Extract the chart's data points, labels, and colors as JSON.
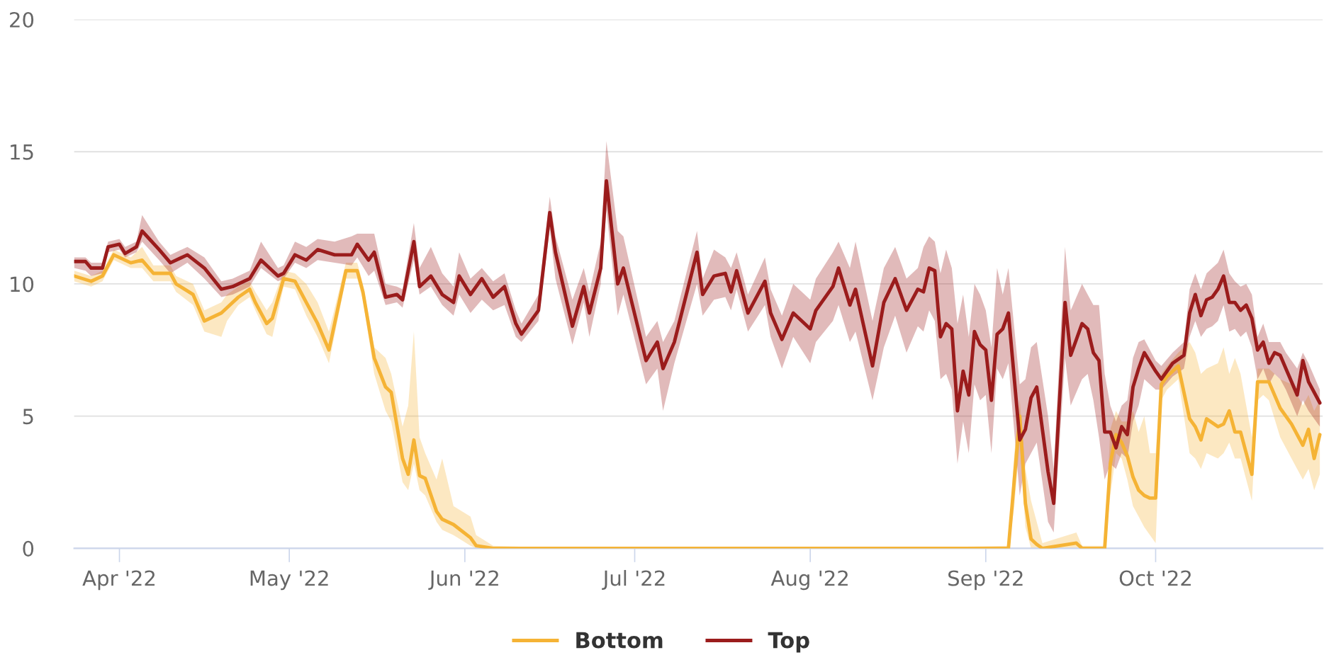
{
  "chart_data": {
    "type": "line",
    "xlim": [
      "2022-03-24",
      "2022-10-30T12:00"
    ],
    "xticks": [
      {
        "value": "2022-04-01",
        "label": "Apr '22"
      },
      {
        "value": "2022-05-01",
        "label": "May '22"
      },
      {
        "value": "2022-06-01",
        "label": "Jun '22"
      },
      {
        "value": "2022-07-01",
        "label": "Jul '22"
      },
      {
        "value": "2022-08-01",
        "label": "Aug '22"
      },
      {
        "value": "2022-09-01",
        "label": "Sep '22"
      },
      {
        "value": "2022-10-01",
        "label": "Oct '22"
      }
    ],
    "ylim": [
      0,
      20
    ],
    "yticks": [
      0,
      5,
      10,
      15,
      20
    ],
    "grid": "y",
    "legend": "bottom",
    "line_style": "solid",
    "series": [
      {
        "name": "Bottom",
        "color": "#f5b335",
        "x": [
          "2022-03-24",
          "2022-03-27",
          "2022-03-29",
          "2022-03-31",
          "2022-04-03",
          "2022-04-05",
          "2022-04-07",
          "2022-04-10",
          "2022-04-11",
          "2022-04-14",
          "2022-04-16",
          "2022-04-19",
          "2022-04-20",
          "2022-04-22",
          "2022-04-24",
          "2022-04-25",
          "2022-04-27",
          "2022-04-28",
          "2022-04-30",
          "2022-05-02",
          "2022-05-04",
          "2022-05-06",
          "2022-05-08",
          "2022-05-11",
          "2022-05-13",
          "2022-05-14",
          "2022-05-16",
          "2022-05-18",
          "2022-05-19",
          "2022-05-21",
          "2022-05-22",
          "2022-05-23",
          "2022-05-24",
          "2022-05-25",
          "2022-05-27",
          "2022-05-28",
          "2022-05-30",
          "2022-06-02",
          "2022-06-03",
          "2022-06-06",
          "2022-06-20",
          "2022-07-15",
          "2022-08-15",
          "2022-09-05",
          "2022-09-06",
          "2022-09-07",
          "2022-09-08",
          "2022-09-09",
          "2022-09-10",
          "2022-09-11",
          "2022-09-17",
          "2022-09-18",
          "2022-09-22",
          "2022-09-23",
          "2022-09-24",
          "2022-09-25",
          "2022-09-26",
          "2022-09-27",
          "2022-09-28",
          "2022-09-29",
          "2022-09-30",
          "2022-10-01",
          "2022-10-02",
          "2022-10-03",
          "2022-10-05",
          "2022-10-07",
          "2022-10-08",
          "2022-10-09",
          "2022-10-10",
          "2022-10-12",
          "2022-10-13",
          "2022-10-14",
          "2022-10-15",
          "2022-10-16",
          "2022-10-18",
          "2022-10-19",
          "2022-10-20",
          "2022-10-21",
          "2022-10-23",
          "2022-10-25",
          "2022-10-27",
          "2022-10-28",
          "2022-10-29",
          "2022-10-30"
        ],
        "values": [
          10.3,
          10.1,
          10.3,
          11.1,
          10.8,
          10.9,
          10.4,
          10.4,
          10.0,
          9.6,
          8.6,
          8.9,
          9.1,
          9.5,
          9.8,
          9.3,
          8.5,
          8.7,
          10.2,
          10.1,
          9.3,
          8.5,
          7.5,
          10.5,
          10.5,
          9.7,
          7.2,
          6.1,
          5.9,
          3.4,
          2.8,
          4.1,
          2.75,
          2.65,
          1.4,
          1.1,
          0.9,
          0.4,
          0.1,
          0,
          0,
          0,
          0,
          0,
          2.5,
          5.0,
          1.7,
          0.35,
          0.15,
          0,
          0.2,
          0,
          0,
          3.2,
          4.3,
          4.0,
          3.5,
          2.7,
          2.2,
          2.0,
          1.9,
          1.9,
          6.2,
          6.5,
          6.9,
          4.9,
          4.6,
          4.1,
          4.9,
          4.6,
          4.7,
          5.2,
          4.4,
          4.4,
          2.8,
          6.3,
          6.3,
          6.3,
          5.3,
          4.7,
          3.9,
          4.5,
          3.4,
          4.3
        ],
        "lower": [
          10.1,
          9.9,
          10.1,
          10.9,
          10.6,
          10.6,
          10.1,
          10.1,
          9.7,
          9.2,
          8.2,
          8.0,
          8.6,
          9.2,
          9.5,
          9.0,
          8.1,
          8.0,
          9.9,
          9.8,
          8.8,
          8.0,
          7.0,
          10.2,
          10.2,
          9.4,
          6.6,
          5.2,
          4.8,
          2.5,
          2.2,
          3.2,
          2.2,
          2.0,
          1.0,
          0.7,
          0.5,
          0.1,
          0.0,
          0,
          0,
          0,
          0,
          0,
          1.5,
          4.0,
          0.8,
          0.0,
          0.0,
          0,
          0.0,
          0,
          0,
          2.0,
          3.6,
          3.4,
          2.6,
          1.6,
          1.2,
          0.8,
          0.5,
          0.2,
          5.6,
          6.0,
          6.4,
          3.6,
          3.4,
          3.0,
          3.6,
          3.4,
          3.6,
          4.0,
          3.4,
          3.4,
          1.8,
          5.6,
          5.8,
          5.6,
          4.2,
          3.4,
          2.6,
          3.0,
          2.2,
          2.8
        ],
        "upper": [
          10.5,
          10.3,
          10.5,
          11.3,
          11.0,
          11.4,
          10.7,
          10.7,
          10.3,
          10.0,
          9.0,
          9.3,
          9.6,
          9.9,
          10.1,
          9.7,
          9.0,
          9.3,
          10.5,
          10.4,
          10.0,
          9.3,
          8.2,
          10.8,
          10.8,
          10.0,
          7.6,
          7.2,
          6.6,
          4.6,
          5.4,
          8.2,
          4.2,
          3.6,
          2.6,
          3.4,
          1.6,
          1.2,
          0.5,
          0.1,
          0,
          0,
          0,
          0.1,
          3.5,
          5.6,
          3.0,
          1.8,
          1.0,
          0.2,
          0.6,
          0.1,
          0.1,
          4.5,
          5.2,
          4.8,
          4.8,
          5.2,
          4.4,
          5.0,
          3.6,
          3.6,
          6.6,
          6.9,
          7.4,
          7.8,
          7.4,
          6.6,
          6.8,
          7.0,
          7.6,
          6.6,
          7.2,
          6.6,
          4.2,
          6.8,
          6.8,
          6.8,
          6.4,
          6.2,
          5.4,
          5.8,
          5.2,
          5.6
        ]
      },
      {
        "name": "Top",
        "color": "#9b1c1c",
        "x": [
          "2022-03-24",
          "2022-03-26",
          "2022-03-27",
          "2022-03-29",
          "2022-03-30",
          "2022-04-01",
          "2022-04-02",
          "2022-04-04",
          "2022-04-05",
          "2022-04-08",
          "2022-04-10",
          "2022-04-13",
          "2022-04-16",
          "2022-04-19",
          "2022-04-21",
          "2022-04-24",
          "2022-04-26",
          "2022-04-29",
          "2022-04-30",
          "2022-05-02",
          "2022-05-04",
          "2022-05-06",
          "2022-05-09",
          "2022-05-12",
          "2022-05-13",
          "2022-05-15",
          "2022-05-16",
          "2022-05-18",
          "2022-05-20",
          "2022-05-21",
          "2022-05-23",
          "2022-05-24",
          "2022-05-26",
          "2022-05-28",
          "2022-05-30",
          "2022-05-31",
          "2022-06-02",
          "2022-06-04",
          "2022-06-06",
          "2022-06-08",
          "2022-06-10",
          "2022-06-11",
          "2022-06-14",
          "2022-06-16",
          "2022-06-17",
          "2022-06-20",
          "2022-06-22",
          "2022-06-23",
          "2022-06-25",
          "2022-06-26",
          "2022-06-28",
          "2022-06-29",
          "2022-07-03",
          "2022-07-05",
          "2022-07-06",
          "2022-07-08",
          "2022-07-12",
          "2022-07-13",
          "2022-07-15",
          "2022-07-17",
          "2022-07-18",
          "2022-07-19",
          "2022-07-21",
          "2022-07-24",
          "2022-07-25",
          "2022-07-27",
          "2022-07-29",
          "2022-08-01",
          "2022-08-02",
          "2022-08-05",
          "2022-08-06",
          "2022-08-08",
          "2022-08-09",
          "2022-08-12",
          "2022-08-14",
          "2022-08-16",
          "2022-08-18",
          "2022-08-20",
          "2022-08-21",
          "2022-08-22",
          "2022-08-23",
          "2022-08-24",
          "2022-08-25",
          "2022-08-26",
          "2022-08-27",
          "2022-08-28",
          "2022-08-29",
          "2022-08-30",
          "2022-08-31",
          "2022-09-01",
          "2022-09-02",
          "2022-09-03",
          "2022-09-04",
          "2022-09-05",
          "2022-09-07",
          "2022-09-08",
          "2022-09-09",
          "2022-09-10",
          "2022-09-12",
          "2022-09-13",
          "2022-09-15",
          "2022-09-16",
          "2022-09-18",
          "2022-09-19",
          "2022-09-20",
          "2022-09-21",
          "2022-09-22",
          "2022-09-23",
          "2022-09-24",
          "2022-09-25",
          "2022-09-26",
          "2022-09-27",
          "2022-09-28",
          "2022-09-29",
          "2022-10-01",
          "2022-10-02",
          "2022-10-04",
          "2022-10-06",
          "2022-10-07",
          "2022-10-08",
          "2022-10-09",
          "2022-10-10",
          "2022-10-11",
          "2022-10-12",
          "2022-10-13",
          "2022-10-14",
          "2022-10-15",
          "2022-10-16",
          "2022-10-17",
          "2022-10-18",
          "2022-10-19",
          "2022-10-20",
          "2022-10-21",
          "2022-10-22",
          "2022-10-23",
          "2022-10-24",
          "2022-10-26",
          "2022-10-27",
          "2022-10-28",
          "2022-10-30"
        ],
        "values": [
          10.85,
          10.85,
          10.6,
          10.6,
          11.4,
          11.5,
          11.15,
          11.4,
          12.0,
          11.3,
          10.8,
          11.1,
          10.6,
          9.8,
          9.9,
          10.2,
          10.9,
          10.3,
          10.4,
          11.1,
          10.9,
          11.3,
          11.1,
          11.1,
          11.5,
          10.9,
          11.2,
          9.5,
          9.6,
          9.4,
          11.6,
          9.9,
          10.3,
          9.6,
          9.3,
          10.3,
          9.6,
          10.2,
          9.5,
          9.9,
          8.5,
          8.1,
          9.0,
          12.7,
          11.2,
          8.4,
          9.9,
          8.9,
          10.6,
          13.9,
          10.0,
          10.6,
          7.1,
          7.8,
          6.8,
          7.8,
          11.2,
          9.6,
          10.3,
          10.4,
          9.7,
          10.5,
          8.9,
          10.1,
          8.9,
          7.9,
          8.9,
          8.3,
          9.0,
          9.9,
          10.6,
          9.2,
          9.8,
          6.9,
          9.3,
          10.2,
          9.0,
          9.8,
          9.7,
          10.6,
          10.5,
          8.0,
          8.5,
          8.3,
          5.2,
          6.7,
          5.8,
          8.2,
          7.7,
          7.5,
          5.6,
          8.1,
          8.3,
          8.9,
          4.1,
          4.5,
          5.7,
          6.1,
          2.9,
          1.7,
          9.3,
          7.3,
          8.5,
          8.3,
          7.4,
          7.1,
          4.4,
          4.4,
          3.8,
          4.6,
          4.3,
          6.1,
          6.8,
          7.4,
          6.7,
          6.4,
          7.0,
          7.3,
          8.9,
          9.6,
          8.8,
          9.4,
          9.5,
          9.8,
          10.3,
          9.3,
          9.3,
          9.0,
          9.2,
          8.7,
          7.5,
          7.8,
          7.0,
          7.4,
          7.3,
          6.8,
          5.8,
          7.1,
          6.3,
          5.5
        ],
        "lower": [
          10.6,
          10.5,
          10.3,
          10.4,
          11.2,
          11.3,
          11.0,
          11.2,
          11.6,
          10.9,
          10.4,
          10.8,
          10.2,
          9.5,
          9.6,
          9.9,
          10.6,
          10.1,
          10.2,
          10.8,
          10.6,
          10.9,
          10.8,
          10.7,
          11.0,
          10.3,
          10.5,
          9.2,
          9.3,
          9.1,
          10.9,
          9.6,
          9.9,
          9.2,
          8.8,
          9.6,
          8.9,
          9.4,
          9.0,
          9.2,
          8.0,
          7.8,
          8.6,
          12.1,
          10.2,
          7.7,
          9.3,
          8.0,
          10.0,
          12.8,
          8.8,
          9.6,
          6.2,
          6.8,
          5.2,
          7.0,
          10.0,
          8.8,
          9.4,
          9.5,
          9.0,
          9.8,
          8.2,
          9.2,
          8.0,
          6.8,
          8.0,
          7.0,
          7.8,
          8.6,
          9.2,
          7.8,
          8.2,
          5.6,
          7.6,
          8.8,
          7.4,
          8.4,
          8.2,
          9.0,
          8.6,
          6.4,
          6.6,
          6.0,
          3.2,
          4.8,
          3.6,
          6.2,
          5.6,
          5.8,
          3.6,
          6.8,
          6.4,
          7.0,
          2.0,
          3.2,
          3.6,
          4.0,
          1.0,
          0.6,
          7.2,
          5.4,
          6.4,
          6.6,
          5.6,
          4.2,
          2.6,
          3.2,
          3.0,
          3.6,
          3.4,
          4.8,
          5.4,
          6.4,
          6.0,
          6.0,
          6.5,
          6.8,
          8.0,
          8.6,
          8.0,
          8.3,
          8.4,
          8.6,
          9.2,
          8.2,
          8.3,
          8.0,
          8.2,
          7.6,
          6.4,
          6.8,
          6.2,
          6.6,
          6.4,
          6.0,
          5.0,
          5.6,
          5.2,
          4.6
        ],
        "upper": [
          11.0,
          11.0,
          10.8,
          10.8,
          11.6,
          11.7,
          11.4,
          11.6,
          12.6,
          11.6,
          11.1,
          11.4,
          11.0,
          10.1,
          10.2,
          10.5,
          11.6,
          10.6,
          10.7,
          11.6,
          11.4,
          11.7,
          11.6,
          11.8,
          11.9,
          11.9,
          11.9,
          10.0,
          9.9,
          9.8,
          12.3,
          10.6,
          11.4,
          10.4,
          9.9,
          11.2,
          10.2,
          10.6,
          10.1,
          10.4,
          9.0,
          8.5,
          9.6,
          13.3,
          11.8,
          9.4,
          10.6,
          9.7,
          11.6,
          15.4,
          12.0,
          11.8,
          8.0,
          8.6,
          7.8,
          8.6,
          12.0,
          10.2,
          11.3,
          11.0,
          10.6,
          11.2,
          9.6,
          11.0,
          9.8,
          8.8,
          10.0,
          9.4,
          10.2,
          11.2,
          11.6,
          10.6,
          11.6,
          8.6,
          10.6,
          11.4,
          10.2,
          10.6,
          11.4,
          11.8,
          11.6,
          10.4,
          11.3,
          10.6,
          8.5,
          9.6,
          8.0,
          10.0,
          9.6,
          9.0,
          7.6,
          10.6,
          9.6,
          10.6,
          6.2,
          6.4,
          7.6,
          7.8,
          5.0,
          3.0,
          11.4,
          9.0,
          10.0,
          9.6,
          9.2,
          9.2,
          6.6,
          5.4,
          4.8,
          5.4,
          5.6,
          7.2,
          7.8,
          7.9,
          7.1,
          6.9,
          7.4,
          7.8,
          9.8,
          10.4,
          9.8,
          10.4,
          10.6,
          10.8,
          11.3,
          10.4,
          10.1,
          9.9,
          10.0,
          9.6,
          8.0,
          8.5,
          7.8,
          7.8,
          7.8,
          7.4,
          6.8,
          7.4,
          7.0,
          6.0
        ]
      }
    ]
  }
}
